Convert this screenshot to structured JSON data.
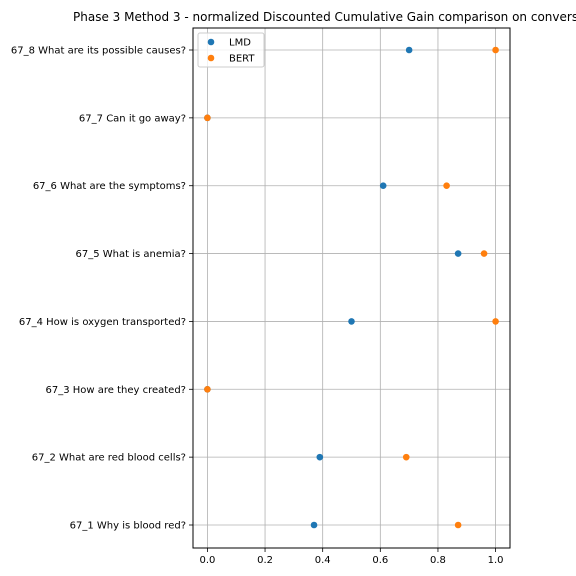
{
  "chart_data": {
    "type": "scatter",
    "title": "Phase 3 Method 3 - normalized Discounted Cumulative Gain comparison on convers",
    "xlabel": "",
    "ylabel": "",
    "xlim": [
      -0.05,
      1.05
    ],
    "xticks": [
      0.0,
      0.2,
      0.4,
      0.6,
      0.8,
      1.0
    ],
    "xtick_labels": [
      "0.0",
      "0.2",
      "0.4",
      "0.6",
      "0.8",
      "1.0"
    ],
    "grid": true,
    "legend_position": "top-left",
    "categories": [
      "67_1 Why is blood red?",
      "67_2 What are red blood cells?",
      "67_3 How are they created?",
      "67_4 How is oxygen transported?",
      "67_5 What is anemia?",
      "67_6 What are the symptoms?",
      "67_7 Can it go away?",
      "67_8 What are its possible causes?"
    ],
    "series": [
      {
        "name": "LMD",
        "color": "#1f77b4",
        "values": [
          0.37,
          0.39,
          0.0,
          0.5,
          0.87,
          0.61,
          0.0,
          0.7
        ]
      },
      {
        "name": "BERT",
        "color": "#ff7f0e",
        "values": [
          0.87,
          0.69,
          0.0,
          1.0,
          0.96,
          0.83,
          0.0,
          1.0
        ]
      }
    ]
  }
}
